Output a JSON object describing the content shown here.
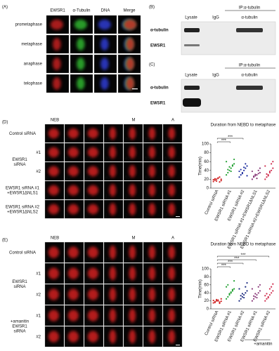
{
  "panels": {
    "A": {
      "label": "(A)",
      "columns": [
        "EWSR1",
        "α-Tubulin",
        "DNA",
        "Merge"
      ],
      "rows": [
        "prometaphase",
        "metaphase",
        "anaphase",
        "telophase"
      ]
    },
    "B": {
      "label": "(B)",
      "ip": "IP:α-tubulin",
      "lanes": [
        "Lysate",
        "IgG",
        "α-tubulin"
      ],
      "rows": [
        "α-tubulin",
        "EWSR1"
      ]
    },
    "C": {
      "label": "(C)",
      "ip": "IP:α-tubulin",
      "lanes": [
        "Lysate",
        "IgG",
        "α-tubulin"
      ],
      "rows": [
        "α-tubulin",
        "EWSR1"
      ]
    },
    "D": {
      "label": "(D)",
      "stages": [
        "NEB",
        "M",
        "A"
      ],
      "groups": [
        {
          "label": [
            "Control siRNA"
          ],
          "rows": [
            {
              "times": [
                "0'",
                "5'",
                "10'",
                "15'",
                "20'",
                "25'",
                "30'"
              ]
            }
          ]
        },
        {
          "label": [
            "EWSR1",
            "siRNA"
          ],
          "rows": [
            {
              "sub": "#1",
              "times": [
                "0'",
                "5'",
                "25'",
                "35'",
                "45'",
                "55'",
                "60'"
              ]
            },
            {
              "sub": "#2",
              "times": [
                "0'",
                "25'",
                "35'",
                "45'",
                "55'",
                "60'",
                "85'"
              ]
            }
          ]
        },
        {
          "label": [
            "EWSR1 siRNA #1",
            "+EWSR1ΔNLS1"
          ],
          "rows": [
            {
              "times": [
                "0'",
                "5'",
                "10'",
                "15'",
                "20'",
                "25'",
                "30'"
              ]
            }
          ]
        },
        {
          "label": [
            "EWSR1 siRNA #2",
            "+EWSR1ΔNLS2"
          ],
          "rows": [
            {
              "times": [
                "0'",
                "5'",
                "10'",
                "15'",
                "20'",
                "25'",
                "30'"
              ]
            }
          ]
        }
      ]
    },
    "E": {
      "label": "(E)",
      "stages": [
        "NEB",
        "M",
        "A"
      ],
      "groups": [
        {
          "label": [
            "Control siRNA"
          ],
          "rows": [
            {
              "times": [
                "0'",
                "5'",
                "10'",
                "15'",
                "25'",
                "30'",
                "35'"
              ]
            }
          ]
        },
        {
          "label": [
            "EWSR1",
            "siRNA"
          ],
          "rows": [
            {
              "sub": "#1",
              "times": [
                "0'",
                "5'",
                "25'",
                "45'",
                "55'",
                "60'",
                "70'"
              ]
            },
            {
              "sub": "#2",
              "times": [
                "0'",
                "5'",
                "25'",
                "45'",
                "55'",
                "60'",
                "65'"
              ]
            }
          ]
        },
        {
          "label": [
            "+amanitin",
            "EWSR1",
            "siRNA"
          ],
          "rows": [
            {
              "sub": "#1",
              "times": [
                "0'",
                "5'",
                "25'",
                "35'",
                "45'",
                "55'",
                "60'"
              ]
            },
            {
              "sub": "#2",
              "times": [
                "0'",
                "5'",
                "15'",
                "25'",
                "45'",
                "55'",
                "55'"
              ]
            }
          ]
        }
      ]
    }
  },
  "chart_data": [
    {
      "type": "strip",
      "title": "Duration from NEBD to metaphase",
      "ylabel": "Time(min)",
      "categories": [
        "Control siRNA",
        "EWSR1 siRNA #1",
        "EWSR1 siRNA #2",
        "EWSR1 siRNA #1+EWSR1ΔNLS1",
        "EWSR1 siRNA #2+EWSR1ΔNLS2"
      ],
      "colors": [
        "#d02020",
        "#20a030",
        "#2030a0",
        "#8a3a7a",
        "#d03050"
      ],
      "values": [
        [
          15,
          18,
          20,
          22,
          25,
          17,
          19,
          21,
          16,
          23,
          14,
          20
        ],
        [
          30,
          35,
          40,
          45,
          50,
          55,
          60,
          42,
          48,
          38,
          52,
          65
        ],
        [
          25,
          30,
          35,
          40,
          45,
          50,
          38,
          42,
          33,
          47,
          55,
          28
        ],
        [
          20,
          25,
          28,
          30,
          33,
          35,
          38,
          27,
          31,
          22,
          40,
          45
        ],
        [
          20,
          25,
          30,
          35,
          40,
          45,
          50,
          32,
          28,
          38,
          55,
          60
        ]
      ],
      "significance": [
        "***",
        "***"
      ],
      "ylim": [
        0,
        100
      ],
      "yticks": [
        0,
        20,
        40,
        60,
        80,
        100
      ]
    },
    {
      "type": "strip",
      "title": "Duration from NEBD to metaphase",
      "ylabel": "Time(min)",
      "categories": [
        "Control siRNA",
        "EWSR1 siRNA #1",
        "EWSR1 siRNA #2",
        "EWSR1 siRNA #1",
        "EWSR1 siRNA #2"
      ],
      "group_label": "+amanitin",
      "colors": [
        "#d02020",
        "#20a030",
        "#1a2a80",
        "#8a3a7a",
        "#d03050"
      ],
      "values": [
        [
          15,
          18,
          20,
          22,
          17,
          19,
          21,
          16,
          23,
          20,
          14,
          25
        ],
        [
          25,
          30,
          35,
          40,
          45,
          50,
          55,
          60,
          38,
          42,
          48,
          70
        ],
        [
          20,
          25,
          30,
          35,
          40,
          45,
          50,
          33,
          38,
          28,
          55,
          65
        ],
        [
          20,
          25,
          30,
          35,
          40,
          45,
          50,
          32,
          38,
          28,
          55,
          60
        ],
        [
          20,
          25,
          30,
          35,
          40,
          45,
          33,
          38,
          28,
          50,
          55,
          62
        ]
      ],
      "significance": [
        "***",
        "***",
        "***",
        "***"
      ],
      "ylim": [
        0,
        100
      ],
      "yticks": [
        0,
        20,
        40,
        60,
        80,
        100
      ]
    }
  ]
}
